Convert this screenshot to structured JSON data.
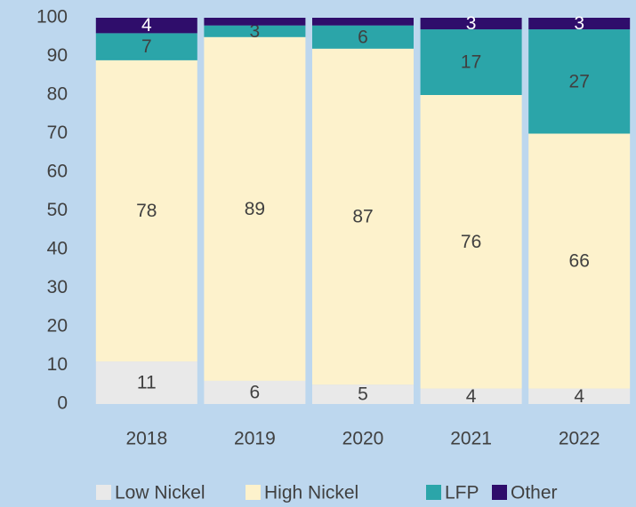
{
  "chart_data": {
    "type": "stacked_bar",
    "categories": [
      "2018",
      "2019",
      "2020",
      "2021",
      "2022"
    ],
    "series": [
      {
        "name": "Low Nickel",
        "color": "#e9e9e9",
        "values": [
          11,
          6,
          5,
          4,
          4
        ]
      },
      {
        "name": "High Nickel",
        "color": "#fdf2cc",
        "values": [
          78,
          89,
          87,
          76,
          66
        ]
      },
      {
        "name": "LFP",
        "color": "#2ba5a9",
        "values": [
          7,
          3,
          6,
          17,
          27
        ]
      },
      {
        "name": "Other",
        "color": "#2f0d6b",
        "values": [
          4,
          2,
          2,
          3,
          3
        ],
        "value_labels": [
          "4",
          null,
          null,
          "3",
          "3"
        ]
      }
    ],
    "ylim": [
      0,
      100
    ],
    "yticks": [
      0,
      10,
      20,
      30,
      40,
      50,
      60,
      70,
      80,
      90,
      100
    ],
    "grid": false,
    "legend": "bottom"
  }
}
